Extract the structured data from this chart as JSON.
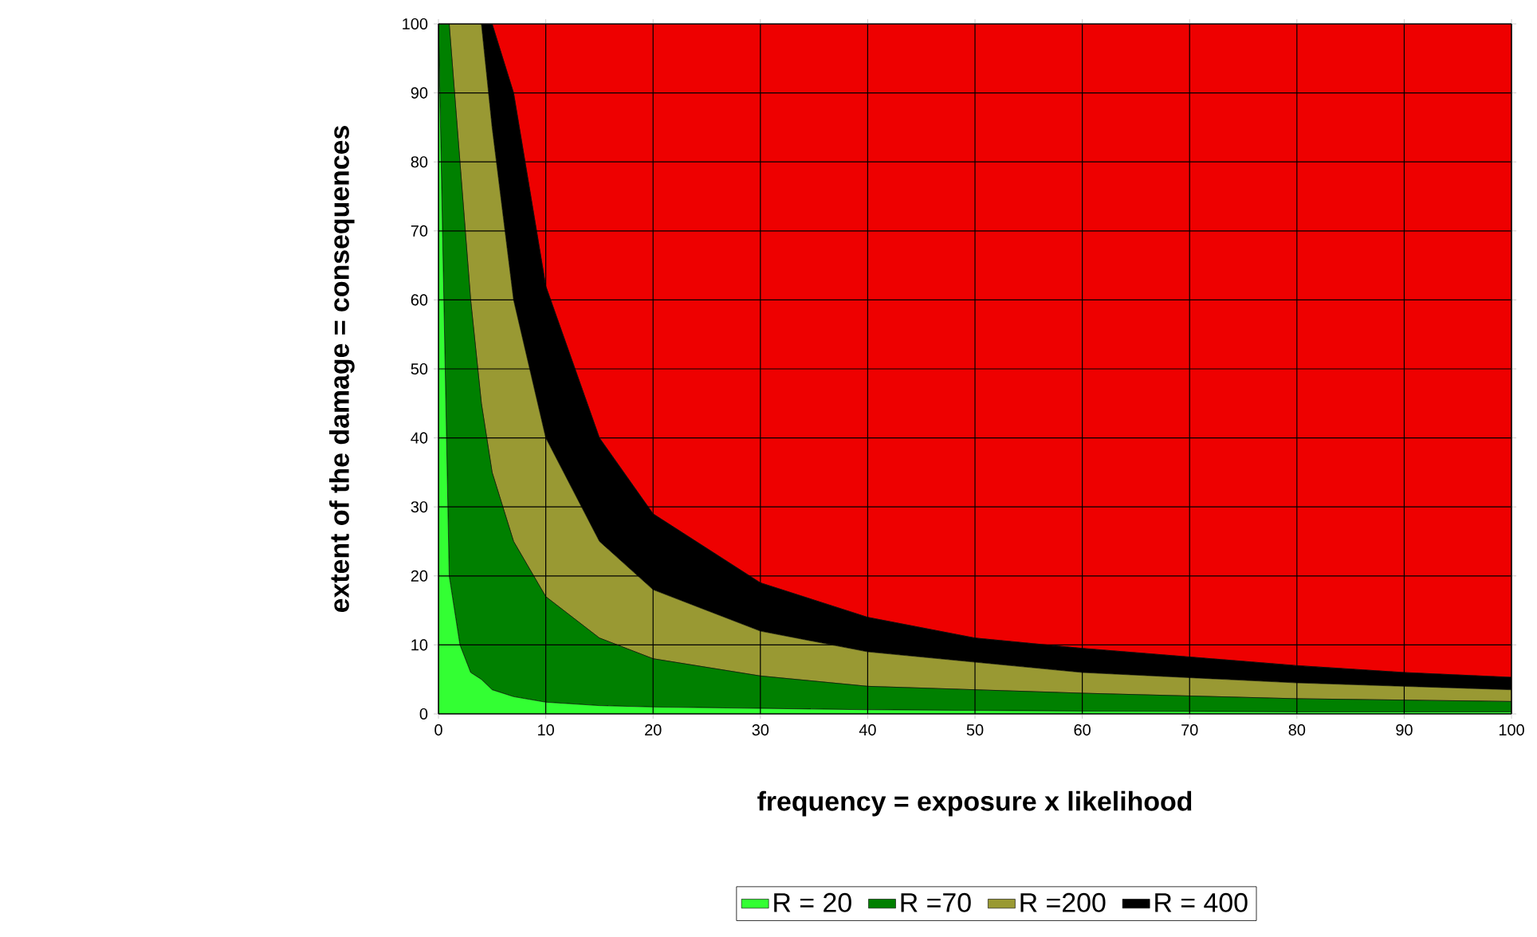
{
  "chart_data": {
    "type": "area",
    "stacked": true,
    "xlabel": "frequency = exposure x likelihood",
    "ylabel": "extent of the damage = consequences",
    "xlim": [
      0,
      100
    ],
    "ylim": [
      0,
      100
    ],
    "xticks": [
      0,
      10,
      20,
      30,
      40,
      50,
      60,
      70,
      80,
      90,
      100
    ],
    "yticks": [
      0,
      10,
      20,
      30,
      40,
      50,
      60,
      70,
      80,
      90,
      100
    ],
    "grid": true,
    "legend": "bottom",
    "x": [
      0,
      1,
      2,
      3,
      4,
      5,
      7,
      10,
      15,
      20,
      30,
      40,
      50,
      60,
      80,
      90,
      100
    ],
    "series": [
      {
        "name": "R = 20",
        "color": "#33ff33",
        "values": [
          100,
          20,
          10,
          6,
          5,
          3.5,
          2.5,
          1.7,
          1.2,
          1,
          0.8,
          0.6,
          0.5,
          0.4,
          0.3,
          0.3,
          0.3
        ]
      },
      {
        "name": "R =70",
        "color": "#008000",
        "values": [
          0,
          80,
          70,
          54,
          40,
          31.5,
          22.5,
          15.3,
          9.8,
          7,
          4.7,
          3.4,
          3,
          2.6,
          1.9,
          1.7,
          1.5
        ]
      },
      {
        "name": "R =200",
        "color": "#999933",
        "values": [
          0,
          0,
          20,
          40,
          55,
          50,
          35,
          23,
          14,
          10,
          6.5,
          5,
          4,
          3,
          2.3,
          2,
          1.7
        ]
      },
      {
        "name": "R = 400",
        "color": "#000000",
        "values": [
          0,
          0,
          0,
          0,
          0,
          15,
          30,
          22,
          15,
          11,
          7,
          5,
          3.5,
          3.5,
          2.5,
          2,
          1.8
        ]
      },
      {
        "color": "#ee0000",
        "values": [
          0,
          0,
          0,
          0,
          0,
          0,
          10,
          38,
          60,
          71,
          81,
          86,
          89,
          90.5,
          93,
          94,
          94.7
        ]
      }
    ]
  }
}
